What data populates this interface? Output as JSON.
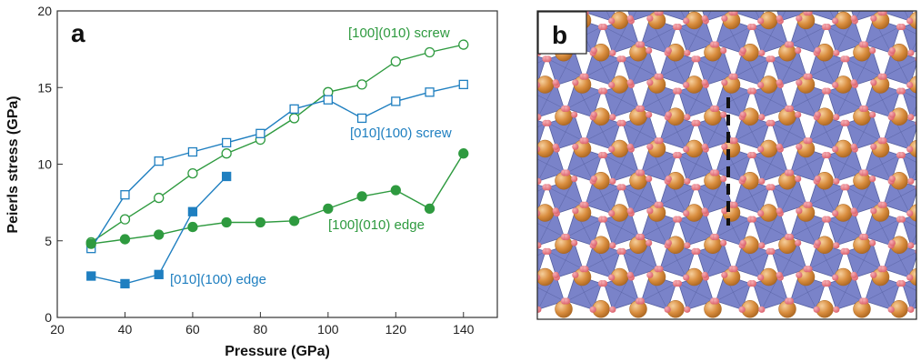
{
  "panel_a_label": "a",
  "panel_b_label": "b",
  "chart_data": {
    "type": "line",
    "xlabel": "Pressure (GPa)",
    "ylabel": "Peierls stress (GPa)",
    "xlim": [
      20,
      150
    ],
    "ylim": [
      0,
      20
    ],
    "xticks": [
      20,
      40,
      60,
      80,
      100,
      120,
      140
    ],
    "yticks": [
      0,
      5,
      10,
      15,
      20
    ],
    "grid": false,
    "series": [
      {
        "name": "[100](010) screw",
        "color": "#2e9a3f",
        "marker": "open-circle",
        "x": [
          30,
          40,
          50,
          60,
          70,
          80,
          90,
          100,
          110,
          120,
          130,
          140
        ],
        "y": [
          4.9,
          6.4,
          7.8,
          9.4,
          10.7,
          11.6,
          13.0,
          14.7,
          15.2,
          16.7,
          17.3,
          17.8
        ]
      },
      {
        "name": "[010](100) screw",
        "color": "#1f7fc0",
        "marker": "open-square",
        "x": [
          30,
          40,
          50,
          60,
          70,
          80,
          90,
          100,
          110,
          120,
          130,
          140
        ],
        "y": [
          4.5,
          8.0,
          10.2,
          10.8,
          11.4,
          12.0,
          13.6,
          14.2,
          13.0,
          14.1,
          14.7,
          15.2
        ]
      },
      {
        "name": "[100](010) edge",
        "color": "#2e9a3f",
        "marker": "filled-circle",
        "x": [
          30,
          40,
          50,
          60,
          70,
          80,
          90,
          100,
          110,
          120,
          130,
          140
        ],
        "y": [
          4.8,
          5.1,
          5.4,
          5.9,
          6.2,
          6.2,
          6.3,
          7.1,
          7.9,
          8.3,
          7.1,
          10.7
        ]
      },
      {
        "name": "[010](100) edge",
        "color": "#1f7fc0",
        "marker": "filled-square",
        "x": [
          30,
          40,
          50,
          60,
          70
        ],
        "y": [
          2.7,
          2.2,
          2.8,
          6.9,
          9.2
        ]
      }
    ]
  },
  "crystal_colors": {
    "background": "#ffffff",
    "octahedra": "#6f78c4",
    "octahedra_dark": "#56609f",
    "oxygen": "#e4707a",
    "cation": "#d58a3b",
    "cation_highlight": "#f4c48c",
    "dislocation_line": "#111111"
  }
}
